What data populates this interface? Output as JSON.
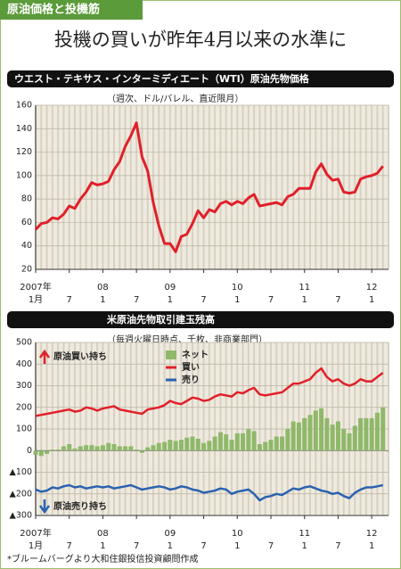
{
  "header": {
    "tag": "原油価格と投機筋",
    "title": "投機の買いが昨年4月以来の水準に"
  },
  "chart_data": [
    {
      "type": "line",
      "title": "ウエスト・テキサス・インターミディエート（WTI）原油先物価格",
      "subtitle": "（週次、ドル/バレル、直近限月）",
      "x": [
        "2007-01",
        "2007-02",
        "2007-03",
        "2007-04",
        "2007-05",
        "2007-06",
        "2007-07",
        "2007-08",
        "2007-09",
        "2007-10",
        "2007-11",
        "2007-12",
        "2008-01",
        "2008-02",
        "2008-03",
        "2008-04",
        "2008-05",
        "2008-06",
        "2008-07",
        "2008-08",
        "2008-09",
        "2008-10",
        "2008-11",
        "2008-12",
        "2009-01",
        "2009-02",
        "2009-03",
        "2009-04",
        "2009-05",
        "2009-06",
        "2009-07",
        "2009-08",
        "2009-09",
        "2009-10",
        "2009-11",
        "2009-12",
        "2010-01",
        "2010-02",
        "2010-03",
        "2010-04",
        "2010-05",
        "2010-06",
        "2010-07",
        "2010-08",
        "2010-09",
        "2010-10",
        "2010-11",
        "2010-12",
        "2011-01",
        "2011-02",
        "2011-03",
        "2011-04",
        "2011-05",
        "2011-06",
        "2011-07",
        "2011-08",
        "2011-09",
        "2011-10",
        "2011-11",
        "2011-12",
        "2012-01",
        "2012-02",
        "2012-03"
      ],
      "values": [
        54,
        59,
        60,
        64,
        63,
        67,
        74,
        72,
        80,
        86,
        94,
        92,
        93,
        95,
        105,
        112,
        125,
        134,
        145,
        116,
        104,
        77,
        57,
        42,
        42,
        35,
        48,
        50,
        59,
        70,
        64,
        71,
        69,
        76,
        78,
        75,
        78,
        76,
        81,
        84,
        74,
        75,
        76,
        77,
        75,
        82,
        84,
        89,
        89,
        89,
        103,
        110,
        101,
        96,
        97,
        86,
        85,
        86,
        97,
        99,
        100,
        102,
        108
      ],
      "color": "#e0202a",
      "xlim": [
        "2007-01",
        "2012-04"
      ],
      "ylim": [
        20,
        160
      ],
      "yticks": [
        20,
        40,
        60,
        80,
        100,
        120,
        140,
        160
      ],
      "xticks": [
        {
          "value": "2007-01",
          "label": "1月"
        },
        {
          "value": "2007-07",
          "label": "7"
        },
        {
          "value": "2008-01",
          "label": "1"
        },
        {
          "value": "2008-07",
          "label": "7"
        },
        {
          "value": "2009-01",
          "label": "1"
        },
        {
          "value": "2009-07",
          "label": "7"
        },
        {
          "value": "2010-01",
          "label": "1"
        },
        {
          "value": "2010-07",
          "label": "7"
        },
        {
          "value": "2011-01",
          "label": "1"
        },
        {
          "value": "2011-07",
          "label": "7"
        },
        {
          "value": "2012-01",
          "label": "1"
        }
      ],
      "year_labels": [
        {
          "value": "2007-01",
          "label": "2007年"
        },
        {
          "value": "2008-01",
          "label": "08"
        },
        {
          "value": "2009-01",
          "label": "09"
        },
        {
          "value": "2010-01",
          "label": "10"
        },
        {
          "value": "2011-01",
          "label": "11"
        },
        {
          "value": "2012-01",
          "label": "12"
        }
      ],
      "grid": true
    },
    {
      "type": "combo",
      "title": "米原油先物取引建玉残高",
      "subtitle": "（毎週火曜日時点、千枚、非商業部門）",
      "x": [
        "2007-01",
        "2007-02",
        "2007-03",
        "2007-04",
        "2007-05",
        "2007-06",
        "2007-07",
        "2007-08",
        "2007-09",
        "2007-10",
        "2007-11",
        "2007-12",
        "2008-01",
        "2008-02",
        "2008-03",
        "2008-04",
        "2008-05",
        "2008-06",
        "2008-07",
        "2008-08",
        "2008-09",
        "2008-10",
        "2008-11",
        "2008-12",
        "2009-01",
        "2009-02",
        "2009-03",
        "2009-04",
        "2009-05",
        "2009-06",
        "2009-07",
        "2009-08",
        "2009-09",
        "2009-10",
        "2009-11",
        "2009-12",
        "2010-01",
        "2010-02",
        "2010-03",
        "2010-04",
        "2010-05",
        "2010-06",
        "2010-07",
        "2010-08",
        "2010-09",
        "2010-10",
        "2010-11",
        "2010-12",
        "2011-01",
        "2011-02",
        "2011-03",
        "2011-04",
        "2011-05",
        "2011-06",
        "2011-07",
        "2011-08",
        "2011-09",
        "2011-10",
        "2011-11",
        "2011-12",
        "2012-01",
        "2012-02",
        "2012-03"
      ],
      "series": [
        {
          "name": "ネット",
          "color": "#8fb86a",
          "kind": "bar",
          "values": [
            -20,
            -25,
            -15,
            5,
            5,
            20,
            30,
            10,
            20,
            25,
            25,
            20,
            25,
            35,
            30,
            20,
            20,
            20,
            5,
            -10,
            15,
            25,
            35,
            40,
            50,
            45,
            50,
            60,
            65,
            55,
            35,
            45,
            65,
            85,
            75,
            50,
            80,
            80,
            100,
            90,
            30,
            40,
            50,
            65,
            65,
            100,
            135,
            130,
            150,
            165,
            185,
            195,
            150,
            120,
            135,
            100,
            80,
            115,
            150,
            150,
            150,
            175,
            200
          ]
        },
        {
          "name": "買い",
          "color": "#e0202a",
          "kind": "line",
          "values": [
            160,
            165,
            170,
            175,
            180,
            185,
            190,
            180,
            185,
            200,
            195,
            185,
            195,
            200,
            205,
            190,
            185,
            180,
            175,
            170,
            190,
            195,
            200,
            210,
            230,
            220,
            215,
            230,
            245,
            240,
            230,
            235,
            250,
            260,
            255,
            250,
            270,
            265,
            280,
            290,
            260,
            255,
            260,
            265,
            270,
            290,
            310,
            310,
            320,
            330,
            360,
            380,
            340,
            320,
            330,
            310,
            300,
            310,
            330,
            320,
            320,
            340,
            360
          ]
        },
        {
          "name": "売り",
          "color": "#2a62b0",
          "kind": "line",
          "values": [
            -180,
            -190,
            -185,
            -170,
            -175,
            -165,
            -160,
            -170,
            -165,
            -175,
            -170,
            -165,
            -170,
            -165,
            -175,
            -170,
            -165,
            -160,
            -170,
            -180,
            -175,
            -170,
            -165,
            -170,
            -180,
            -175,
            -165,
            -170,
            -180,
            -185,
            -195,
            -190,
            -185,
            -175,
            -180,
            -200,
            -190,
            -185,
            -180,
            -200,
            -230,
            -215,
            -210,
            -200,
            -205,
            -190,
            -175,
            -180,
            -170,
            -165,
            -175,
            -185,
            -190,
            -200,
            -195,
            -210,
            -220,
            -195,
            -180,
            -170,
            -170,
            -165,
            -160
          ]
        }
      ],
      "xlim": [
        "2007-01",
        "2012-04"
      ],
      "ylim": [
        -300,
        500
      ],
      "yticks": [
        {
          "value": -300,
          "label": "▲300"
        },
        {
          "value": -200,
          "label": "▲200"
        },
        {
          "value": -100,
          "label": "▲100"
        },
        0,
        100,
        200,
        300,
        400,
        500
      ],
      "xticks": [
        {
          "value": "2007-01",
          "label": "1月"
        },
        {
          "value": "2007-07",
          "label": "7"
        },
        {
          "value": "2008-01",
          "label": "1"
        },
        {
          "value": "2008-07",
          "label": "7"
        },
        {
          "value": "2009-01",
          "label": "1"
        },
        {
          "value": "2009-07",
          "label": "7"
        },
        {
          "value": "2010-01",
          "label": "1"
        },
        {
          "value": "2010-07",
          "label": "7"
        },
        {
          "value": "2011-01",
          "label": "1"
        },
        {
          "value": "2011-07",
          "label": "7"
        },
        {
          "value": "2012-01",
          "label": "1"
        }
      ],
      "year_labels": [
        {
          "value": "2007-01",
          "label": "2007年"
        },
        {
          "value": "2008-01",
          "label": "08"
        },
        {
          "value": "2009-01",
          "label": "09"
        },
        {
          "value": "2010-01",
          "label": "10"
        },
        {
          "value": "2011-01",
          "label": "11"
        },
        {
          "value": "2012-01",
          "label": "12"
        }
      ],
      "annotations": [
        "原油買い持ち",
        "原油売り持ち"
      ],
      "grid": true
    }
  ],
  "footer": "*ブルームバーグより大和住銀投信投資顧問作成"
}
